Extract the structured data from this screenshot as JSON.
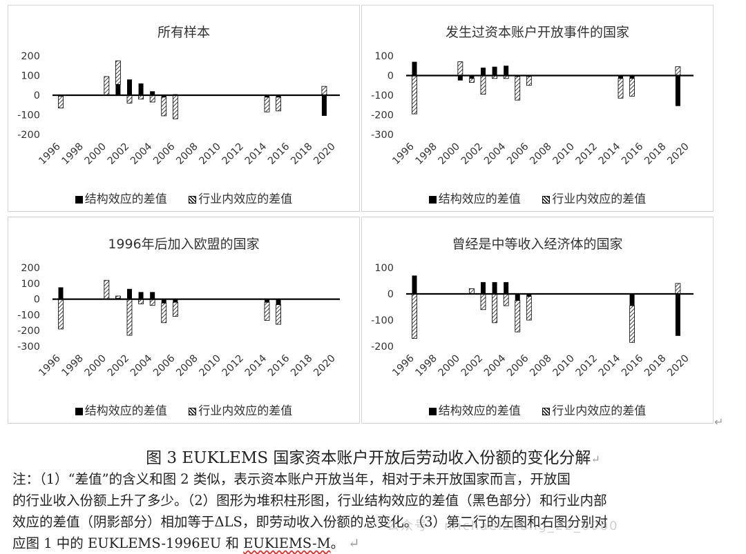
{
  "colors": {
    "structure": "#000000",
    "within": "hatched-black",
    "border": "#d4d4d4"
  },
  "legend": {
    "structure": "结构效应的差值",
    "within": "行业内效应的差值"
  },
  "chart_data": [
    {
      "type": "bar",
      "title": "所有样本",
      "ylim": [
        -200,
        200
      ],
      "yticks": [
        200,
        100,
        0,
        -100,
        -200
      ],
      "xticks": [
        "1996",
        "1998",
        "2000",
        "2002",
        "2004",
        "2006",
        "2008",
        "2010",
        "2012",
        "2014",
        "2016",
        "2018",
        "2020"
      ],
      "x": [
        1996,
        1997,
        1998,
        1999,
        2000,
        2001,
        2002,
        2003,
        2004,
        2005,
        2006,
        2007,
        2008,
        2009,
        2010,
        2011,
        2012,
        2013,
        2014,
        2015,
        2016,
        2017,
        2018,
        2019,
        2020
      ],
      "series": [
        {
          "name": "结构效应的差值",
          "values": [
            -5,
            0,
            0,
            0,
            0,
            55,
            80,
            60,
            20,
            -10,
            5,
            0,
            0,
            0,
            0,
            0,
            0,
            0,
            -10,
            -10,
            0,
            0,
            0,
            -105,
            0
          ]
        },
        {
          "name": "行业内效应的差值",
          "values": [
            -60,
            0,
            0,
            0,
            95,
            120,
            -40,
            -20,
            -35,
            -95,
            -120,
            0,
            0,
            0,
            0,
            0,
            0,
            0,
            -75,
            -70,
            0,
            0,
            0,
            45,
            0
          ]
        }
      ],
      "grid": false,
      "legend_position": "bottom"
    },
    {
      "type": "bar",
      "title": "发生过资本账户开放事件的国家",
      "ylim": [
        -300,
        100
      ],
      "yticks": [
        100,
        0,
        -100,
        -200,
        -300
      ],
      "xticks": [
        "1996",
        "1998",
        "2000",
        "2002",
        "2004",
        "2006",
        "2008",
        "2010",
        "2012",
        "2014",
        "2016",
        "2018",
        "2020"
      ],
      "x": [
        1996,
        1997,
        1998,
        1999,
        2000,
        2001,
        2002,
        2003,
        2004,
        2005,
        2006,
        2007,
        2008,
        2009,
        2010,
        2011,
        2012,
        2013,
        2014,
        2015,
        2016,
        2017,
        2018,
        2019,
        2020
      ],
      "series": [
        {
          "name": "结构效应的差值",
          "values": [
            70,
            0,
            0,
            0,
            -25,
            -15,
            40,
            45,
            50,
            -5,
            -5,
            0,
            0,
            0,
            0,
            0,
            0,
            0,
            -15,
            -15,
            0,
            0,
            0,
            -155,
            0
          ]
        },
        {
          "name": "行业内效应的差值",
          "values": [
            -195,
            0,
            0,
            0,
            70,
            -20,
            -95,
            -15,
            -15,
            -120,
            -45,
            0,
            0,
            0,
            0,
            0,
            0,
            0,
            -100,
            -90,
            0,
            0,
            0,
            45,
            0
          ]
        }
      ],
      "grid": false,
      "legend_position": "bottom"
    },
    {
      "type": "bar",
      "title": "1996年后加入欧盟的国家",
      "ylim": [
        -300,
        200
      ],
      "yticks": [
        200,
        100,
        0,
        -100,
        -200,
        -300
      ],
      "xticks": [
        "1996",
        "1998",
        "2000",
        "2002",
        "2004",
        "2006",
        "2008",
        "2010",
        "2012",
        "2014",
        "2016",
        "2018",
        "2020"
      ],
      "x": [
        1996,
        1997,
        1998,
        1999,
        2000,
        2001,
        2002,
        2003,
        2004,
        2005,
        2006,
        2007,
        2008,
        2009,
        2010,
        2011,
        2012,
        2013,
        2014,
        2015,
        2016,
        2017,
        2018,
        2019,
        2020
      ],
      "series": [
        {
          "name": "结构效应的差值",
          "values": [
            75,
            0,
            0,
            0,
            0,
            5,
            65,
            45,
            45,
            -25,
            -20,
            0,
            0,
            0,
            0,
            0,
            0,
            0,
            -20,
            -35,
            0,
            0,
            0,
            0,
            0
          ]
        },
        {
          "name": "行业内效应的差值",
          "values": [
            -190,
            0,
            0,
            0,
            120,
            15,
            -230,
            -30,
            -40,
            -125,
            -90,
            0,
            0,
            0,
            0,
            0,
            0,
            0,
            -115,
            -125,
            0,
            0,
            0,
            0,
            0
          ]
        }
      ],
      "grid": false,
      "legend_position": "bottom"
    },
    {
      "type": "bar",
      "title": "曾经是中等收入经济体的国家",
      "ylim": [
        -200,
        100
      ],
      "yticks": [
        100,
        0,
        -100,
        -200
      ],
      "xticks": [
        "1996",
        "1998",
        "2000",
        "2002",
        "2004",
        "2006",
        "2008",
        "2010",
        "2012",
        "2014",
        "2016",
        "2018",
        "2020"
      ],
      "x": [
        1996,
        1997,
        1998,
        1999,
        2000,
        2001,
        2002,
        2003,
        2004,
        2005,
        2006,
        2007,
        2008,
        2009,
        2010,
        2011,
        2012,
        2013,
        2014,
        2015,
        2016,
        2017,
        2018,
        2019,
        2020
      ],
      "series": [
        {
          "name": "结构效应的差值",
          "values": [
            70,
            0,
            0,
            0,
            0,
            0,
            45,
            45,
            45,
            -25,
            -10,
            0,
            0,
            0,
            0,
            0,
            0,
            0,
            0,
            -45,
            0,
            0,
            0,
            -160,
            0
          ]
        },
        {
          "name": "行业内效应的差值",
          "values": [
            -170,
            0,
            0,
            0,
            0,
            20,
            -60,
            -110,
            -45,
            -120,
            -90,
            0,
            0,
            0,
            0,
            0,
            0,
            0,
            0,
            -140,
            0,
            0,
            0,
            40,
            0
          ]
        }
      ],
      "grid": false,
      "legend_position": "bottom"
    }
  ],
  "caption": "图 3  EUKLEMS 国家资本账户开放后劳动收入份额的变化分解",
  "notes": [
    "注：（1）“差值”的含义和图 2 类似，表示资本账户开放当年，相对于未开放国家而言，开放国",
    "的行业收入份额上升了多少。（2）图形为堆积柱形图，行业结构效应的差值（黑色部分）和行业内部",
    "效应的差值（阴影部分）相加等于ΔLS，即劳动收入份额的总变化。（3）第二行的左图和右图分别对",
    "应图 1 中的 EUKLEMS-1996EU 和 "
  ],
  "note_last_tail": "EUKlEMS-M",
  "note_last_end": "。",
  "return_mark": "↵",
  "watermark": "公众号 · michaelzhang_22_0000"
}
